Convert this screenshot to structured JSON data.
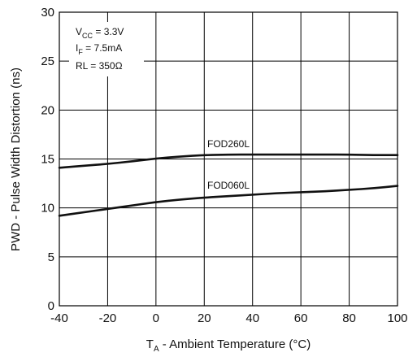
{
  "chart_data": {
    "type": "line",
    "xlabel": {
      "main": "T",
      "sub": "A",
      "rest": " - Ambient Temperature (°C)"
    },
    "ylabel": "PWD - Pulse Width Distortion (ns)",
    "xlim": [
      -40,
      100
    ],
    "ylim": [
      0,
      30
    ],
    "xticks": [
      "-40",
      "-20",
      "0",
      "20",
      "40",
      "60",
      "80",
      "100"
    ],
    "yticks": [
      "0",
      "5",
      "10",
      "15",
      "20",
      "25",
      "30"
    ],
    "grid": true,
    "conditions": [
      {
        "main": "V",
        "sub": "CC",
        "rest": " = 3.3V"
      },
      {
        "main": "I",
        "sub": "F",
        "rest": " = 7.5mA"
      },
      {
        "main": "RL = 350Ω",
        "sub": "",
        "rest": ""
      }
    ],
    "series": [
      {
        "name": "FOD260L",
        "x": [
          -40,
          -30,
          -20,
          -10,
          0,
          10,
          20,
          30,
          40,
          50,
          60,
          70,
          80,
          90,
          100
        ],
        "y": [
          14.1,
          14.3,
          14.5,
          14.75,
          15.05,
          15.25,
          15.4,
          15.45,
          15.45,
          15.45,
          15.45,
          15.45,
          15.45,
          15.4,
          15.4
        ]
      },
      {
        "name": "FOD060L",
        "x": [
          -40,
          -30,
          -20,
          -10,
          0,
          10,
          20,
          30,
          40,
          50,
          60,
          70,
          80,
          90,
          100
        ],
        "y": [
          9.2,
          9.55,
          9.9,
          10.25,
          10.6,
          10.85,
          11.05,
          11.2,
          11.35,
          11.5,
          11.6,
          11.7,
          11.85,
          12.0,
          12.25
        ]
      }
    ]
  }
}
